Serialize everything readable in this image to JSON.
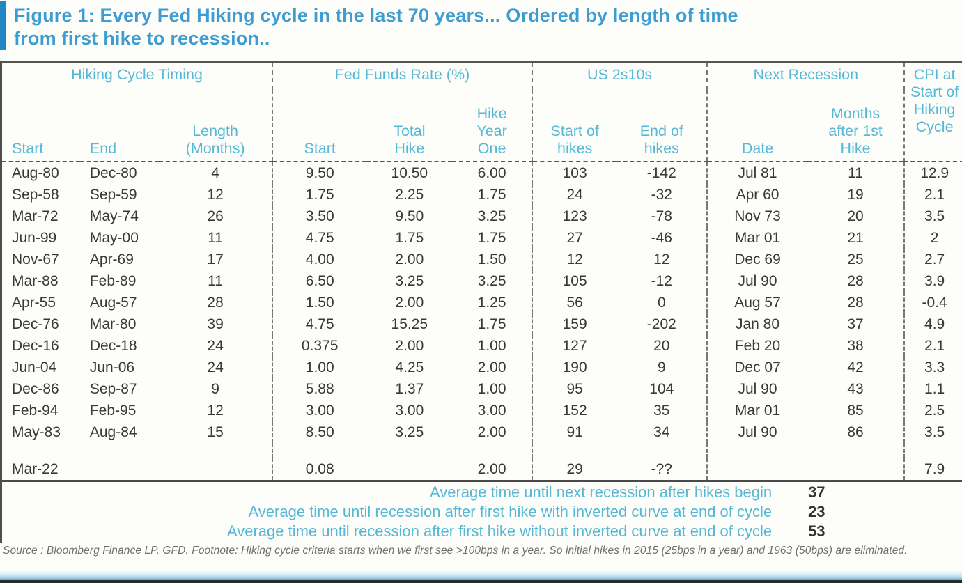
{
  "title": {
    "line1": "Figure 1: Every Fed Hiking cycle in the last 70 years... Ordered by length of time",
    "line2": "from first hike to recession.."
  },
  "table": {
    "groups": [
      {
        "label": "Hiking Cycle Timing"
      },
      {
        "label": "Fed Funds Rate (%)"
      },
      {
        "label": "US 2s10s"
      },
      {
        "label": "Next Recession"
      }
    ],
    "columns": [
      "Start",
      "End",
      "Length\n(Months)",
      "Start",
      "Total\nHike",
      "Hike\nYear\nOne",
      "Start of\nhikes",
      "End of\nhikes",
      "Date",
      "Months\nafter 1st\nHike",
      "CPI at\nStart of\nHiking\nCycle"
    ],
    "rows": [
      [
        "Aug-80",
        "Dec-80",
        "4",
        "9.50",
        "10.50",
        "6.00",
        "103",
        "-142",
        "Jul 81",
        "11",
        "12.9"
      ],
      [
        "Sep-58",
        "Sep-59",
        "12",
        "1.75",
        "2.25",
        "1.75",
        "24",
        "-32",
        "Apr 60",
        "19",
        "2.1"
      ],
      [
        "Mar-72",
        "May-74",
        "26",
        "3.50",
        "9.50",
        "3.25",
        "123",
        "-78",
        "Nov 73",
        "20",
        "3.5"
      ],
      [
        "Jun-99",
        "May-00",
        "11",
        "4.75",
        "1.75",
        "1.75",
        "27",
        "-46",
        "Mar 01",
        "21",
        "2"
      ],
      [
        "Nov-67",
        "Apr-69",
        "17",
        "4.00",
        "2.00",
        "1.50",
        "12",
        "12",
        "Dec 69",
        "25",
        "2.7"
      ],
      [
        "Mar-88",
        "Feb-89",
        "11",
        "6.50",
        "3.25",
        "3.25",
        "105",
        "-12",
        "Jul 90",
        "28",
        "3.9"
      ],
      [
        "Apr-55",
        "Aug-57",
        "28",
        "1.50",
        "2.00",
        "1.25",
        "56",
        "0",
        "Aug 57",
        "28",
        "-0.4"
      ],
      [
        "Dec-76",
        "Mar-80",
        "39",
        "4.75",
        "15.25",
        "1.75",
        "159",
        "-202",
        "Jan 80",
        "37",
        "4.9"
      ],
      [
        "Dec-16",
        "Dec-18",
        "24",
        "0.375",
        "2.00",
        "1.00",
        "127",
        "20",
        "Feb 20",
        "38",
        "2.1"
      ],
      [
        "Jun-04",
        "Jun-06",
        "24",
        "1.00",
        "4.25",
        "2.00",
        "190",
        "9",
        "Dec 07",
        "42",
        "3.3"
      ],
      [
        "Dec-86",
        "Sep-87",
        "9",
        "5.88",
        "1.37",
        "1.00",
        "95",
        "104",
        "Jul 90",
        "43",
        "1.1"
      ],
      [
        "Feb-94",
        "Feb-95",
        "12",
        "3.00",
        "3.00",
        "3.00",
        "152",
        "35",
        "Mar 01",
        "85",
        "2.5"
      ],
      [
        "May-83",
        "Aug-84",
        "15",
        "8.50",
        "3.25",
        "2.00",
        "91",
        "34",
        "Jul 90",
        "86",
        "3.5"
      ]
    ],
    "current_row": [
      "Mar-22",
      "",
      "",
      "0.08",
      "",
      "2.00",
      "29",
      "-??",
      "",
      "",
      "7.9"
    ]
  },
  "summary": [
    {
      "label": "Average time until next recession after hikes begin",
      "value": "37"
    },
    {
      "label": "Average time until recession after first hike with inverted curve at end of cycle",
      "value": "23"
    },
    {
      "label": "Average time until recession after first hike without inverted curve at end of cycle",
      "value": "53"
    }
  ],
  "footnote": "Source : Bloomberg Finance LP, GFD. Footnote: Hiking cycle criteria starts when we first see >100bps in a year. So initial hikes in 2015 (25bps in a year) and 1963 (50bps) are eliminated.",
  "colors": {
    "title_blue": "#3d9dd2",
    "header_cyan": "#54b8d6",
    "accent_bar_blue": "#2186c4",
    "data_text": "#383838",
    "footnote_gray": "#6e6e6e",
    "bottom_bar_blue": "#4c94bb"
  }
}
